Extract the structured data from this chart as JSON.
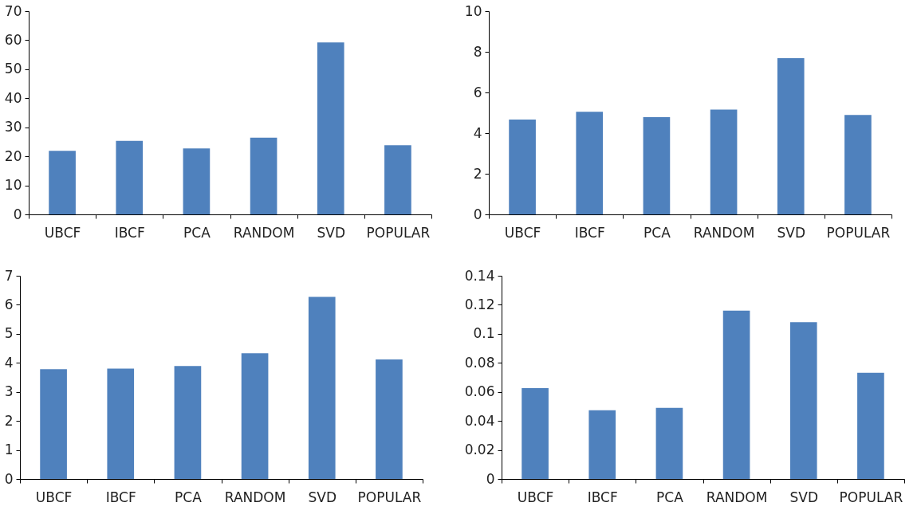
{
  "chart_data": [
    {
      "type": "bar",
      "categories": [
        "UBCF",
        "IBCF",
        "PCA",
        "RANDOM",
        "SVD",
        "POPULAR"
      ],
      "values": [
        21.9,
        25.3,
        22.7,
        26.4,
        59.2,
        23.8
      ],
      "color": "#4f81bd",
      "ylim": [
        0,
        70
      ],
      "yticks": [
        0,
        10,
        20,
        30,
        40,
        50,
        60,
        70
      ]
    },
    {
      "type": "bar",
      "categories": [
        "UBCF",
        "IBCF",
        "PCA",
        "RANDOM",
        "SVD",
        "POPULAR"
      ],
      "values": [
        4.67,
        5.05,
        4.78,
        5.16,
        7.69,
        4.89
      ],
      "color": "#4f81bd",
      "ylim": [
        0,
        10
      ],
      "yticks": [
        0,
        2,
        4,
        6,
        8,
        10
      ]
    },
    {
      "type": "bar",
      "categories": [
        "UBCF",
        "IBCF",
        "PCA",
        "RANDOM",
        "SVD",
        "POPULAR"
      ],
      "values": [
        3.78,
        3.8,
        3.89,
        4.33,
        6.27,
        4.12
      ],
      "color": "#4f81bd",
      "ylim": [
        0,
        7
      ],
      "yticks": [
        0,
        1,
        2,
        3,
        4,
        5,
        6,
        7
      ]
    },
    {
      "type": "bar",
      "categories": [
        "UBCF",
        "IBCF",
        "PCA",
        "RANDOM",
        "SVD",
        "POPULAR"
      ],
      "values": [
        0.0626,
        0.0474,
        0.049,
        0.116,
        0.108,
        0.0732
      ],
      "color": "#4f81bd",
      "ylim": [
        0,
        0.14
      ],
      "yticks": [
        0,
        0.02,
        0.04,
        0.06,
        0.08,
        0.1,
        0.12,
        0.14
      ]
    }
  ]
}
